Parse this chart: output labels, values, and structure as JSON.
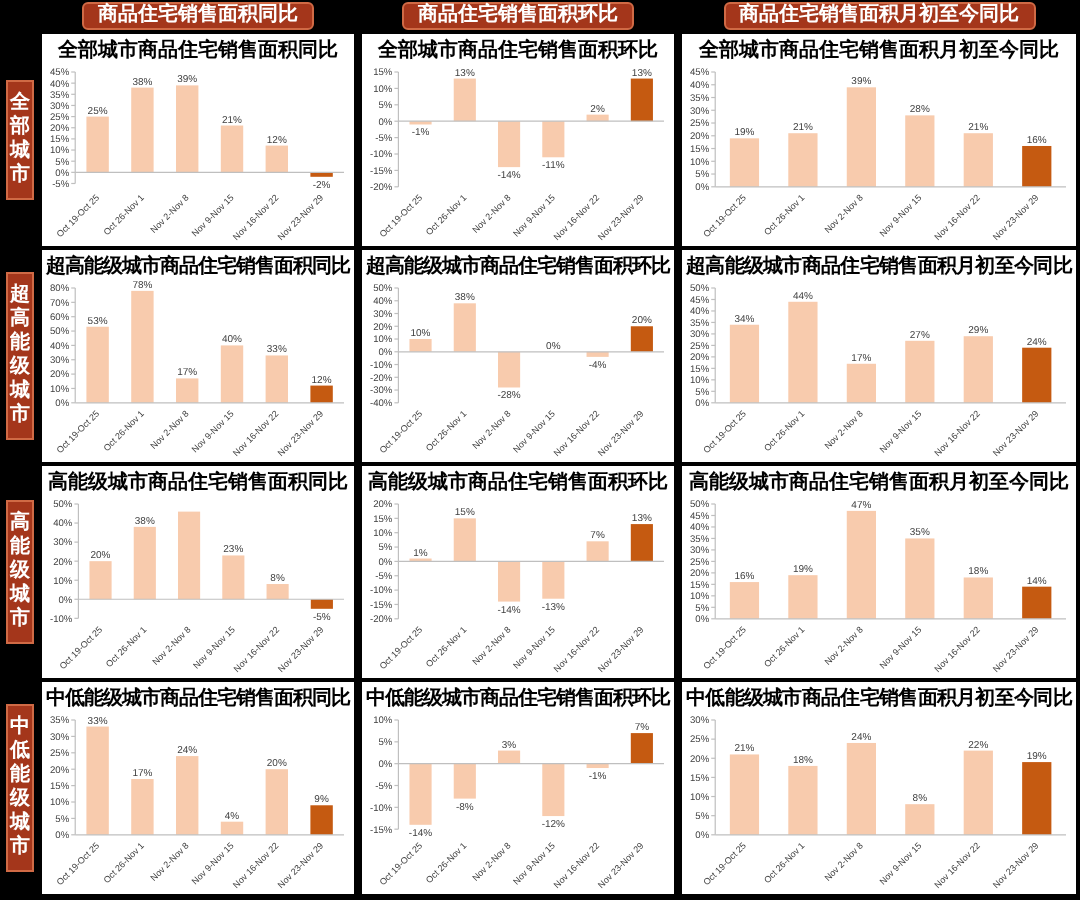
{
  "chart_data": [
    {
      "type": "other",
      "annotations": [
        "商品住宅销售面积同比",
        "商品住宅销售面积环比",
        "商品住宅销售面积月初至今同比"
      ]
    },
    {
      "type": "other",
      "annotations": [
        "全部城市"
      ]
    },
    {
      "type": "bar",
      "title": "全部城市商品住宅销售面积同比",
      "categories": [
        "Oct 19-Oct 25",
        "Oct 26-Nov 1",
        "Nov 2-Nov 8",
        "Nov 9-Nov 15",
        "Nov 16-Nov 22",
        "Nov 23-Nov 29"
      ],
      "values": [
        25,
        38,
        39,
        21,
        12,
        -2
      ],
      "colors": [
        "#f8cbad",
        "#f8cbad",
        "#f8cbad",
        "#f8cbad",
        "#f8cbad",
        "#c55a11"
      ],
      "value_labels": [
        "25%",
        "38%",
        "39%",
        "21%",
        "12%",
        "-2%"
      ],
      "ylim": [
        -5,
        45
      ],
      "yticks": [
        {
          "value": -5,
          "label": "-5%"
        },
        {
          "value": 0,
          "label": "0%"
        },
        {
          "value": 5,
          "label": "5%"
        },
        {
          "value": 10,
          "label": "10%"
        },
        {
          "value": 15,
          "label": "15%"
        },
        {
          "value": 20,
          "label": "20%"
        },
        {
          "value": 25,
          "label": "25%"
        },
        {
          "value": 30,
          "label": "30%"
        },
        {
          "value": 35,
          "label": "35%"
        },
        {
          "value": 40,
          "label": "40%"
        },
        {
          "value": 45,
          "label": "45%"
        }
      ]
    },
    {
      "type": "bar",
      "title": "全部城市商品住宅销售面积环比",
      "categories": [
        "Oct 19-Oct 25",
        "Oct 26-Nov 1",
        "Nov 2-Nov 8",
        "Nov 9-Nov 15",
        "Nov 16-Nov 22",
        "Nov 23-Nov 29"
      ],
      "values": [
        -1,
        13,
        -14,
        -11,
        2,
        13
      ],
      "colors": [
        "#f8cbad",
        "#f8cbad",
        "#f8cbad",
        "#f8cbad",
        "#f8cbad",
        "#c55a11"
      ],
      "value_labels": [
        "-1%",
        "13%",
        "-14%",
        "-11%",
        "2%",
        "13%"
      ],
      "ylim": [
        -20,
        15
      ],
      "yticks": [
        {
          "value": -20,
          "label": "-20%"
        },
        {
          "value": -15,
          "label": "-15%"
        },
        {
          "value": -10,
          "label": "-10%"
        },
        {
          "value": -5,
          "label": "-5%"
        },
        {
          "value": 0,
          "label": "0%"
        },
        {
          "value": 5,
          "label": "5%"
        },
        {
          "value": 10,
          "label": "10%"
        },
        {
          "value": 15,
          "label": "15%"
        }
      ]
    },
    {
      "type": "bar",
      "title": "全部城市商品住宅销售面积月初至今同比",
      "categories": [
        "Oct 19-Oct 25",
        "Oct 26-Nov 1",
        "Nov 2-Nov 8",
        "Nov 9-Nov 15",
        "Nov 16-Nov 22",
        "Nov 23-Nov 29"
      ],
      "values": [
        19,
        21,
        39,
        28,
        21,
        16
      ],
      "colors": [
        "#f8cbad",
        "#f8cbad",
        "#f8cbad",
        "#f8cbad",
        "#f8cbad",
        "#c55a11"
      ],
      "value_labels": [
        "19%",
        "21%",
        "39%",
        "28%",
        "21%",
        "16%"
      ],
      "ylim": [
        0,
        45
      ],
      "yticks": [
        {
          "value": 0,
          "label": "0%"
        },
        {
          "value": 5,
          "label": "5%"
        },
        {
          "value": 10,
          "label": "10%"
        },
        {
          "value": 15,
          "label": "15%"
        },
        {
          "value": 20,
          "label": "20%"
        },
        {
          "value": 25,
          "label": "25%"
        },
        {
          "value": 30,
          "label": "30%"
        },
        {
          "value": 35,
          "label": "35%"
        },
        {
          "value": 40,
          "label": "40%"
        },
        {
          "value": 45,
          "label": "45%"
        }
      ]
    },
    {
      "type": "other",
      "annotations": [
        "超高能级城市"
      ]
    },
    {
      "type": "bar",
      "title": "超高能级城市商品住宅销售面积同比",
      "categories": [
        "Oct 19-Oct 25",
        "Oct 26-Nov 1",
        "Nov 2-Nov 8",
        "Nov 9-Nov 15",
        "Nov 16-Nov 22",
        "Nov 23-Nov 29"
      ],
      "values": [
        53,
        78,
        17,
        40,
        33,
        12
      ],
      "colors": [
        "#f8cbad",
        "#f8cbad",
        "#f8cbad",
        "#f8cbad",
        "#f8cbad",
        "#c55a11"
      ],
      "value_labels": [
        "53%",
        "78%",
        "17%",
        "40%",
        "33%",
        "12%"
      ],
      "ylim": [
        0,
        80
      ],
      "yticks": [
        {
          "value": 0,
          "label": "0%"
        },
        {
          "value": 10,
          "label": "10%"
        },
        {
          "value": 20,
          "label": "20%"
        },
        {
          "value": 30,
          "label": "30%"
        },
        {
          "value": 40,
          "label": "40%"
        },
        {
          "value": 50,
          "label": "50%"
        },
        {
          "value": 60,
          "label": "60%"
        },
        {
          "value": 70,
          "label": "70%"
        },
        {
          "value": 80,
          "label": "80%"
        }
      ]
    },
    {
      "type": "bar",
      "title": "超高能级城市商品住宅销售面积环比",
      "categories": [
        "Oct 19-Oct 25",
        "Oct 26-Nov 1",
        "Nov 2-Nov 8",
        "Nov 9-Nov 15",
        "Nov 16-Nov 22",
        "Nov 23-Nov 29"
      ],
      "values": [
        10,
        38,
        -28,
        0,
        -4,
        20
      ],
      "colors": [
        "#f8cbad",
        "#f8cbad",
        "#f8cbad",
        "#f8cbad",
        "#f8cbad",
        "#c55a11"
      ],
      "value_labels": [
        "10%",
        "38%",
        "-28%",
        "0%",
        "-4%",
        "20%"
      ],
      "ylim": [
        -40,
        50
      ],
      "yticks": [
        {
          "value": -40,
          "label": "-40%"
        },
        {
          "value": -30,
          "label": "-30%"
        },
        {
          "value": -20,
          "label": "-20%"
        },
        {
          "value": -10,
          "label": "-10%"
        },
        {
          "value": 0,
          "label": "0%"
        },
        {
          "value": 10,
          "label": "10%"
        },
        {
          "value": 20,
          "label": "20%"
        },
        {
          "value": 30,
          "label": "30%"
        },
        {
          "value": 40,
          "label": "40%"
        },
        {
          "value": 50,
          "label": "50%"
        }
      ]
    },
    {
      "type": "bar",
      "title": "超高能级城市商品住宅销售面积月初至今同比",
      "categories": [
        "Oct 19-Oct 25",
        "Oct 26-Nov 1",
        "Nov 2-Nov 8",
        "Nov 9-Nov 15",
        "Nov 16-Nov 22",
        "Nov 23-Nov 29"
      ],
      "values": [
        34,
        44,
        17,
        27,
        29,
        24
      ],
      "colors": [
        "#f8cbad",
        "#f8cbad",
        "#f8cbad",
        "#f8cbad",
        "#f8cbad",
        "#c55a11"
      ],
      "value_labels": [
        "34%",
        "44%",
        "17%",
        "27%",
        "29%",
        "24%"
      ],
      "ylim": [
        0,
        50
      ],
      "yticks": [
        {
          "value": 0,
          "label": "0%"
        },
        {
          "value": 5,
          "label": "5%"
        },
        {
          "value": 10,
          "label": "10%"
        },
        {
          "value": 15,
          "label": "15%"
        },
        {
          "value": 20,
          "label": "20%"
        },
        {
          "value": 25,
          "label": "25%"
        },
        {
          "value": 30,
          "label": "30%"
        },
        {
          "value": 35,
          "label": "35%"
        },
        {
          "value": 40,
          "label": "40%"
        },
        {
          "value": 45,
          "label": "45%"
        },
        {
          "value": 50,
          "label": "50%"
        }
      ]
    },
    {
      "type": "other",
      "annotations": [
        "高能级城市"
      ]
    },
    {
      "type": "bar",
      "title": "高能级城市商品住宅销售面积同比",
      "categories": [
        "Oct 19-Oct 25",
        "Oct 26-Nov 1",
        "Nov 2-Nov 8",
        "Nov 9-Nov 15",
        "Nov 16-Nov 22",
        "Nov 23-Nov 29"
      ],
      "values": [
        20,
        38,
        46,
        23,
        8,
        -5
      ],
      "colors": [
        "#f8cbad",
        "#f8cbad",
        "#f8cbad",
        "#f8cbad",
        "#f8cbad",
        "#c55a11"
      ],
      "value_labels": [
        "20%",
        "38%",
        null,
        "23%",
        "8%",
        "-5%"
      ],
      "ylim": [
        -10,
        50
      ],
      "yticks": [
        {
          "value": -10,
          "label": "-10%"
        },
        {
          "value": 0,
          "label": "0%"
        },
        {
          "value": 10,
          "label": "10%"
        },
        {
          "value": 20,
          "label": "20%"
        },
        {
          "value": 30,
          "label": "30%"
        },
        {
          "value": 40,
          "label": "40%"
        },
        {
          "value": 50,
          "label": "50%"
        }
      ]
    },
    {
      "type": "bar",
      "title": "高能级城市商品住宅销售面积环比",
      "categories": [
        "Oct 19-Oct 25",
        "Oct 26-Nov 1",
        "Nov 2-Nov 8",
        "Nov 9-Nov 15",
        "Nov 16-Nov 22",
        "Nov 23-Nov 29"
      ],
      "values": [
        1,
        15,
        -14,
        -13,
        7,
        13
      ],
      "colors": [
        "#f8cbad",
        "#f8cbad",
        "#f8cbad",
        "#f8cbad",
        "#f8cbad",
        "#c55a11"
      ],
      "value_labels": [
        "1%",
        "15%",
        "-14%",
        "-13%",
        "7%",
        "13%"
      ],
      "ylim": [
        -20,
        20
      ],
      "yticks": [
        {
          "value": -20,
          "label": "-20%"
        },
        {
          "value": -15,
          "label": "-15%"
        },
        {
          "value": -10,
          "label": "-10%"
        },
        {
          "value": -5,
          "label": "-5%"
        },
        {
          "value": 0,
          "label": "0%"
        },
        {
          "value": 5,
          "label": "5%"
        },
        {
          "value": 10,
          "label": "10%"
        },
        {
          "value": 15,
          "label": "15%"
        },
        {
          "value": 20,
          "label": "20%"
        }
      ]
    },
    {
      "type": "bar",
      "title": "高能级城市商品住宅销售面积月初至今同比",
      "categories": [
        "Oct 19-Oct 25",
        "Oct 26-Nov 1",
        "Nov 2-Nov 8",
        "Nov 9-Nov 15",
        "Nov 16-Nov 22",
        "Nov 23-Nov 29"
      ],
      "values": [
        16,
        19,
        47,
        35,
        18,
        14
      ],
      "colors": [
        "#f8cbad",
        "#f8cbad",
        "#f8cbad",
        "#f8cbad",
        "#f8cbad",
        "#c55a11"
      ],
      "value_labels": [
        "16%",
        "19%",
        "47%",
        "35%",
        "18%",
        "14%"
      ],
      "ylim": [
        0,
        50
      ],
      "yticks": [
        {
          "value": 0,
          "label": "0%"
        },
        {
          "value": 5,
          "label": "5%"
        },
        {
          "value": 10,
          "label": "10%"
        },
        {
          "value": 15,
          "label": "15%"
        },
        {
          "value": 20,
          "label": "20%"
        },
        {
          "value": 25,
          "label": "25%"
        },
        {
          "value": 30,
          "label": "30%"
        },
        {
          "value": 35,
          "label": "35%"
        },
        {
          "value": 40,
          "label": "40%"
        },
        {
          "value": 45,
          "label": "45%"
        },
        {
          "value": 50,
          "label": "50%"
        }
      ]
    },
    {
      "type": "other",
      "annotations": [
        "中低能级城市"
      ]
    },
    {
      "type": "bar",
      "title": "中低能级城市商品住宅销售面积同比",
      "categories": [
        "Oct 19-Oct 25",
        "Oct 26-Nov 1",
        "Nov 2-Nov 8",
        "Nov 9-Nov 15",
        "Nov 16-Nov 22",
        "Nov 23-Nov 29"
      ],
      "values": [
        33,
        17,
        24,
        4,
        20,
        9
      ],
      "colors": [
        "#f8cbad",
        "#f8cbad",
        "#f8cbad",
        "#f8cbad",
        "#f8cbad",
        "#c55a11"
      ],
      "value_labels": [
        "33%",
        "17%",
        "24%",
        "4%",
        "20%",
        "9%"
      ],
      "ylim": [
        0,
        35
      ],
      "yticks": [
        {
          "value": 0,
          "label": "0%"
        },
        {
          "value": 5,
          "label": "5%"
        },
        {
          "value": 10,
          "label": "10%"
        },
        {
          "value": 15,
          "label": "15%"
        },
        {
          "value": 20,
          "label": "20%"
        },
        {
          "value": 25,
          "label": "25%"
        },
        {
          "value": 30,
          "label": "30%"
        },
        {
          "value": 35,
          "label": "35%"
        }
      ]
    },
    {
      "type": "bar",
      "title": "中低能级城市商品住宅销售面积环比",
      "categories": [
        "Oct 19-Oct 25",
        "Oct 26-Nov 1",
        "Nov 2-Nov 8",
        "Nov 9-Nov 15",
        "Nov 16-Nov 22",
        "Nov 23-Nov 29"
      ],
      "values": [
        -14,
        -8,
        3,
        -12,
        -1,
        7
      ],
      "colors": [
        "#f8cbad",
        "#f8cbad",
        "#f8cbad",
        "#f8cbad",
        "#f8cbad",
        "#c55a11"
      ],
      "value_labels": [
        "-14%",
        "-8%",
        "3%",
        "-12%",
        "-1%",
        "7%"
      ],
      "ylim": [
        -15,
        10
      ],
      "yticks": [
        {
          "value": -15,
          "label": "-15%"
        },
        {
          "value": -10,
          "label": "-10%"
        },
        {
          "value": -5,
          "label": "-5%"
        },
        {
          "value": 0,
          "label": "0%"
        },
        {
          "value": 5,
          "label": "5%"
        },
        {
          "value": 10,
          "label": "10%"
        }
      ]
    },
    {
      "type": "bar",
      "title": "中低能级城市商品住宅销售面积月初至今同比",
      "categories": [
        "Oct 19-Oct 25",
        "Oct 26-Nov 1",
        "Nov 2-Nov 8",
        "Nov 9-Nov 15",
        "Nov 16-Nov 22",
        "Nov 23-Nov 29"
      ],
      "values": [
        21,
        18,
        24,
        8,
        22,
        19
      ],
      "colors": [
        "#f8cbad",
        "#f8cbad",
        "#f8cbad",
        "#f8cbad",
        "#f8cbad",
        "#c55a11"
      ],
      "value_labels": [
        "21%",
        "18%",
        "24%",
        "8%",
        "22%",
        "19%"
      ],
      "ylim": [
        0,
        30
      ],
      "yticks": [
        {
          "value": 0,
          "label": "0%"
        },
        {
          "value": 5,
          "label": "5%"
        },
        {
          "value": 10,
          "label": "10%"
        },
        {
          "value": 15,
          "label": "15%"
        },
        {
          "value": 20,
          "label": "20%"
        },
        {
          "value": 25,
          "label": "25%"
        },
        {
          "value": 30,
          "label": "30%"
        }
      ]
    }
  ]
}
